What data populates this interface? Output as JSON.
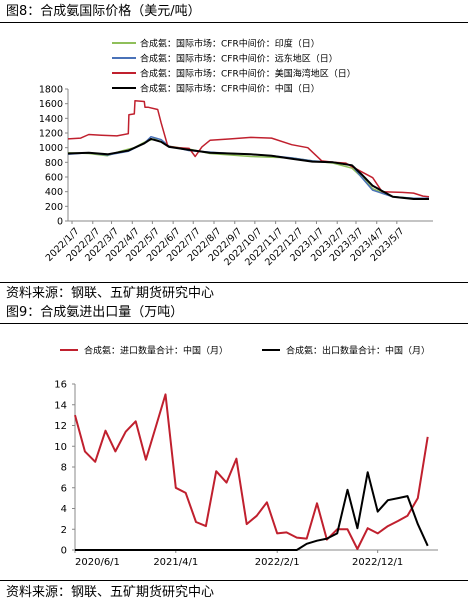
{
  "figures": [
    {
      "title": "图8：合成氨国际价格（美元/吨）",
      "source": "资料来源：钢联、五矿期货研究中心"
    },
    {
      "title": "图9：合成氨进出口量（万吨）",
      "source": "资料来源：钢联、五矿期货研究中心"
    }
  ],
  "chart_data": [
    {
      "type": "line",
      "ylim": [
        0,
        1800
      ],
      "yticks": [
        0,
        200,
        400,
        600,
        800,
        1000,
        1200,
        1400,
        1600,
        1800
      ],
      "x_range": [
        "2022-01-01",
        "2023-06-30"
      ],
      "xticks": [
        "2022/1/7",
        "2022/2/7",
        "2022/3/7",
        "2022/4/7",
        "2022/5/7",
        "2022/6/7",
        "2022/7/7",
        "2022/8/7",
        "2022/9/7",
        "2022/10/7",
        "2022/11/7",
        "2022/12/7",
        "2023/1/7",
        "2023/2/7",
        "2023/3/7",
        "2023/4/7",
        "2023/5/7"
      ],
      "grid": false,
      "legend_placement": "top-left",
      "series": [
        {
          "name": "合成氨：国际市场：CFR中间价：印度（日）",
          "color": "#8fbf5a",
          "points": [
            [
              "2022-01-01",
              930
            ],
            [
              "2022-02-01",
              920
            ],
            [
              "2022-03-01",
              890
            ],
            [
              "2022-03-20",
              950
            ],
            [
              "2022-04-10",
              1000
            ],
            [
              "2022-04-28",
              1090
            ],
            [
              "2022-05-10",
              1120
            ],
            [
              "2022-05-20",
              1080
            ],
            [
              "2022-06-01",
              1020
            ],
            [
              "2022-07-01",
              980
            ],
            [
              "2022-08-01",
              920
            ],
            [
              "2022-09-01",
              900
            ],
            [
              "2022-10-01",
              880
            ],
            [
              "2022-11-01",
              870
            ],
            [
              "2022-12-01",
              860
            ],
            [
              "2023-01-01",
              820
            ],
            [
              "2023-02-01",
              790
            ],
            [
              "2023-03-01",
              720
            ],
            [
              "2023-03-20",
              560
            ],
            [
              "2023-04-01",
              440
            ],
            [
              "2023-05-01",
              330
            ],
            [
              "2023-06-01",
              310
            ],
            [
              "2023-06-24",
              300
            ]
          ]
        },
        {
          "name": "合成氨：国际市场：CFR中间价：远东地区（日）",
          "color": "#4a72b8",
          "points": [
            [
              "2022-01-01",
              910
            ],
            [
              "2022-02-01",
              930
            ],
            [
              "2022-03-01",
              900
            ],
            [
              "2022-04-01",
              950
            ],
            [
              "2022-04-25",
              1060
            ],
            [
              "2022-05-05",
              1150
            ],
            [
              "2022-05-20",
              1110
            ],
            [
              "2022-06-01",
              1020
            ],
            [
              "2022-07-01",
              960
            ],
            [
              "2022-08-01",
              940
            ],
            [
              "2022-09-01",
              920
            ],
            [
              "2022-10-01",
              910
            ],
            [
              "2022-11-01",
              890
            ],
            [
              "2022-12-01",
              860
            ],
            [
              "2023-01-01",
              820
            ],
            [
              "2023-02-01",
              800
            ],
            [
              "2023-03-01",
              760
            ],
            [
              "2023-03-15",
              600
            ],
            [
              "2023-04-01",
              420
            ],
            [
              "2023-05-01",
              330
            ],
            [
              "2023-06-01",
              310
            ],
            [
              "2023-06-24",
              310
            ]
          ]
        },
        {
          "name": "合成氨：国际市场：CFR中间价：美国海湾地区（日）",
          "color": "#c0202e",
          "points": [
            [
              "2022-01-01",
              1120
            ],
            [
              "2022-01-20",
              1130
            ],
            [
              "2022-02-01",
              1180
            ],
            [
              "2022-02-20",
              1170
            ],
            [
              "2022-03-15",
              1160
            ],
            [
              "2022-04-01",
              1190
            ],
            [
              "2022-04-02",
              1450
            ],
            [
              "2022-04-10",
              1460
            ],
            [
              "2022-04-11",
              1640
            ],
            [
              "2022-04-25",
              1630
            ],
            [
              "2022-04-26",
              1550
            ],
            [
              "2022-05-01",
              1550
            ],
            [
              "2022-05-15",
              1520
            ],
            [
              "2022-05-20",
              1340
            ],
            [
              "2022-05-30",
              1020
            ],
            [
              "2022-06-15",
              1000
            ],
            [
              "2022-07-01",
              990
            ],
            [
              "2022-07-10",
              880
            ],
            [
              "2022-07-20",
              1010
            ],
            [
              "2022-08-01",
              1100
            ],
            [
              "2022-09-01",
              1120
            ],
            [
              "2022-10-01",
              1140
            ],
            [
              "2022-11-01",
              1130
            ],
            [
              "2022-12-01",
              1040
            ],
            [
              "2022-12-25",
              1000
            ],
            [
              "2023-01-15",
              820
            ],
            [
              "2023-02-01",
              800
            ],
            [
              "2023-02-20",
              790
            ],
            [
              "2023-03-01",
              740
            ],
            [
              "2023-04-01",
              590
            ],
            [
              "2023-04-15",
              400
            ],
            [
              "2023-05-15",
              390
            ],
            [
              "2023-06-01",
              380
            ],
            [
              "2023-06-15",
              340
            ],
            [
              "2023-06-24",
              330
            ]
          ]
        },
        {
          "name": "合成氨：国际市场：CFR中间价：中国（日）",
          "color": "#000000",
          "points": [
            [
              "2022-01-01",
              920
            ],
            [
              "2022-02-01",
              930
            ],
            [
              "2022-03-01",
              910
            ],
            [
              "2022-04-01",
              960
            ],
            [
              "2022-04-25",
              1060
            ],
            [
              "2022-05-05",
              1120
            ],
            [
              "2022-05-20",
              1080
            ],
            [
              "2022-06-01",
              1010
            ],
            [
              "2022-07-01",
              970
            ],
            [
              "2022-08-01",
              930
            ],
            [
              "2022-09-01",
              920
            ],
            [
              "2022-10-01",
              910
            ],
            [
              "2022-11-01",
              890
            ],
            [
              "2022-12-01",
              850
            ],
            [
              "2023-01-01",
              810
            ],
            [
              "2023-02-01",
              800
            ],
            [
              "2023-03-01",
              760
            ],
            [
              "2023-03-15",
              640
            ],
            [
              "2023-04-01",
              480
            ],
            [
              "2023-05-01",
              330
            ],
            [
              "2023-06-01",
              300
            ],
            [
              "2023-06-24",
              300
            ]
          ]
        }
      ]
    },
    {
      "type": "line",
      "ylim": [
        0,
        16
      ],
      "yticks": [
        0,
        2,
        4,
        6,
        8,
        10,
        12,
        14,
        16
      ],
      "x_range": [
        "2020-06-01",
        "2023-06-01"
      ],
      "xticks": [
        "2020/6/1",
        "2021/4/1",
        "2022/2/1",
        "2022/12/1"
      ],
      "grid": false,
      "legend_placement": "top",
      "series": [
        {
          "name": "合成氨：进口数量合计：中国（月）",
          "color": "#c0202e",
          "x": [
            "2020-06",
            "2020-07",
            "2020-08",
            "2020-09",
            "2020-10",
            "2020-11",
            "2020-12",
            "2021-01",
            "2021-02",
            "2021-03",
            "2021-04",
            "2021-05",
            "2021-06",
            "2021-07",
            "2021-08",
            "2021-09",
            "2021-10",
            "2021-11",
            "2021-12",
            "2022-01",
            "2022-02",
            "2022-03",
            "2022-04",
            "2022-05",
            "2022-06",
            "2022-07",
            "2022-08",
            "2022-09",
            "2022-10",
            "2022-11",
            "2022-12",
            "2023-01",
            "2023-02",
            "2023-03",
            "2023-04",
            "2023-05"
          ],
          "values": [
            13.0,
            9.5,
            8.5,
            11.5,
            9.5,
            11.4,
            12.4,
            8.7,
            12.0,
            15.0,
            6.0,
            5.5,
            2.7,
            2.3,
            7.6,
            6.5,
            8.8,
            2.5,
            3.3,
            4.6,
            1.6,
            1.7,
            1.2,
            1.1,
            4.5,
            1.0,
            2.0,
            2.0,
            0.1,
            2.1,
            1.6,
            2.3,
            2.8,
            3.3,
            5.0,
            10.9
          ]
        },
        {
          "name": "合成氨：出口数量合计：中国（月）",
          "color": "#000000",
          "x": [
            "2020-06",
            "2020-07",
            "2020-08",
            "2020-09",
            "2020-10",
            "2020-11",
            "2020-12",
            "2021-01",
            "2021-02",
            "2021-03",
            "2021-04",
            "2021-05",
            "2021-06",
            "2021-07",
            "2021-08",
            "2021-09",
            "2021-10",
            "2021-11",
            "2021-12",
            "2022-01",
            "2022-02",
            "2022-03",
            "2022-04",
            "2022-05",
            "2022-06",
            "2022-07",
            "2022-08",
            "2022-09",
            "2022-10",
            "2022-11",
            "2022-12",
            "2023-01",
            "2023-02",
            "2023-03",
            "2023-04",
            "2023-05"
          ],
          "values": [
            0,
            0,
            0,
            0,
            0,
            0,
            0,
            0,
            0,
            0,
            0,
            0,
            0,
            0,
            0,
            0,
            0,
            0,
            0,
            0,
            0,
            0,
            0,
            0.6,
            0.9,
            1.1,
            1.6,
            5.8,
            2.1,
            7.5,
            3.7,
            4.8,
            5.0,
            5.2,
            2.5,
            0.4
          ]
        }
      ]
    }
  ]
}
